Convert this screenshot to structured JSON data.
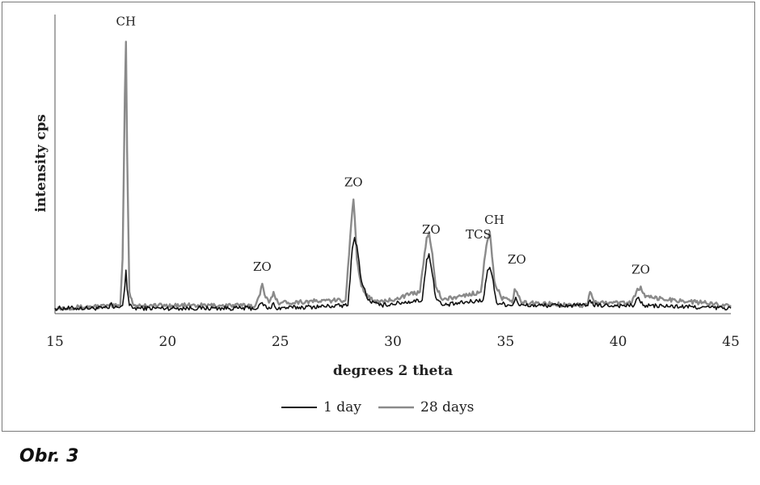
{
  "chart_data": {
    "type": "line",
    "title": "",
    "xlabel": "degrees 2 theta",
    "ylabel": "intensity cps",
    "xlim": [
      15,
      45
    ],
    "ylim": [
      0,
      110
    ],
    "x_ticks": [
      15,
      20,
      25,
      30,
      35,
      40,
      45
    ],
    "y_ticks_shown": false,
    "grid": false,
    "legend_position": "bottom",
    "series": [
      {
        "name": "1 day",
        "color": "#111111",
        "x": [
          15,
          17.4,
          17.5,
          17.6,
          18.0,
          18.1,
          18.15,
          18.2,
          18.3,
          18.5,
          24.0,
          24.2,
          24.4,
          24.6,
          24.7,
          24.8,
          28.0,
          28.2,
          28.3,
          28.4,
          28.6,
          28.9,
          29.4,
          31.3,
          31.5,
          31.6,
          31.7,
          31.9,
          32.2,
          34.0,
          34.2,
          34.3,
          34.4,
          34.6,
          35.3,
          35.45,
          35.6,
          38.6,
          38.75,
          38.9,
          40.7,
          40.9,
          41.1,
          45
        ],
        "y": [
          2,
          2,
          4,
          2,
          3,
          10,
          16,
          9,
          3,
          2,
          2,
          4,
          2,
          2,
          4,
          2,
          3,
          24,
          28,
          25,
          12,
          5,
          3,
          5,
          20,
          22,
          17,
          6,
          3,
          5,
          16,
          17,
          14,
          4,
          3,
          6,
          3,
          3,
          5,
          3,
          3,
          6,
          3,
          2
        ]
      },
      {
        "name": "28 days",
        "color": "#8a8a8a",
        "x": [
          15,
          17.9,
          18.0,
          18.1,
          18.15,
          18.2,
          18.3,
          18.5,
          23.9,
          24.1,
          24.2,
          24.3,
          24.5,
          24.6,
          24.7,
          24.9,
          27.9,
          28.1,
          28.2,
          28.25,
          28.3,
          28.4,
          28.6,
          28.9,
          29.4,
          31.2,
          31.4,
          31.5,
          31.6,
          31.75,
          31.9,
          32.2,
          33.9,
          34.1,
          34.2,
          34.3,
          34.35,
          34.5,
          34.8,
          35.3,
          35.4,
          35.5,
          35.7,
          38.6,
          38.75,
          38.95,
          40.6,
          40.8,
          41.0,
          41.2,
          45
        ],
        "y": [
          2,
          3,
          20,
          80,
          100,
          60,
          8,
          3,
          3,
          7,
          11,
          7,
          4,
          6,
          8,
          4,
          5,
          28,
          38,
          42,
          36,
          20,
          10,
          6,
          4,
          8,
          22,
          28,
          30,
          22,
          10,
          5,
          8,
          22,
          27,
          30,
          26,
          12,
          6,
          4,
          9,
          8,
          4,
          3,
          8,
          4,
          4,
          8,
          10,
          6,
          3
        ]
      }
    ],
    "annotations": [
      {
        "text": "CH",
        "x": 18.15
      },
      {
        "text": "ZO",
        "x": 24.2
      },
      {
        "text": "ZO",
        "x": 28.25
      },
      {
        "text": "ZO",
        "x": 31.7
      },
      {
        "text": "TCS",
        "x": 33.8
      },
      {
        "text": "CH",
        "x": 34.5
      },
      {
        "text": "ZO",
        "x": 35.5
      },
      {
        "text": "ZO",
        "x": 41.0
      }
    ]
  },
  "caption": "Obr. 3"
}
